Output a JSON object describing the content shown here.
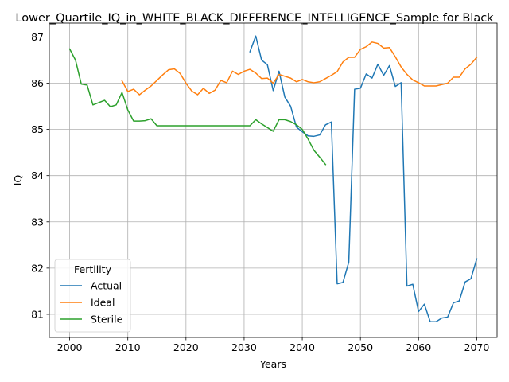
{
  "chart_data": {
    "type": "line",
    "title": "Lower_Quartile_IQ_in_WHITE_BLACK_DIFFERENCE_INTELLIGENCE_Sample for Black",
    "xlabel": "Years",
    "ylabel": "IQ",
    "xlim": [
      1996.5,
      2073.5
    ],
    "ylim": [
      80.5,
      87.3
    ],
    "xticks": [
      2000,
      2010,
      2020,
      2030,
      2040,
      2050,
      2060,
      2070
    ],
    "yticks": [
      81,
      82,
      83,
      84,
      85,
      86,
      87
    ],
    "grid": true,
    "legend": {
      "title": "Fertility",
      "placement": "lower-left"
    },
    "series": [
      {
        "name": "Actual",
        "color": "#1f77b4",
        "x": [
          2031,
          2032,
          2033,
          2034,
          2035,
          2036,
          2037,
          2038,
          2039,
          2040,
          2041,
          2042,
          2043,
          2044,
          2045,
          2046,
          2047,
          2048,
          2049,
          2050,
          2051,
          2052,
          2053,
          2054,
          2055,
          2056,
          2057,
          2058,
          2059,
          2060,
          2061,
          2062,
          2063,
          2064,
          2065,
          2066,
          2067,
          2068,
          2069,
          2070
        ],
        "y": [
          86.68,
          87.02,
          86.5,
          86.4,
          85.84,
          86.26,
          85.7,
          85.5,
          85.05,
          84.95,
          84.86,
          84.85,
          84.88,
          85.1,
          85.16,
          81.66,
          81.69,
          82.13,
          85.87,
          85.89,
          86.2,
          86.11,
          86.41,
          86.17,
          86.38,
          85.93,
          86.01,
          81.61,
          81.65,
          81.06,
          81.22,
          80.84,
          80.84,
          80.92,
          80.94,
          81.25,
          81.29,
          81.7,
          81.77,
          82.2
        ]
      },
      {
        "name": "Ideal",
        "color": "#ff7f0e",
        "x": [
          2009,
          2010,
          2011,
          2012,
          2013,
          2014,
          2015,
          2016,
          2017,
          2018,
          2019,
          2020,
          2021,
          2022,
          2023,
          2024,
          2025,
          2026,
          2027,
          2028,
          2029,
          2030,
          2031,
          2032,
          2033,
          2034,
          2035,
          2036,
          2037,
          2038,
          2039,
          2040,
          2041,
          2042,
          2043,
          2044,
          2045,
          2046,
          2047,
          2048,
          2049,
          2050,
          2051,
          2052,
          2053,
          2054,
          2055,
          2056,
          2057,
          2058,
          2059,
          2060,
          2061,
          2062,
          2063,
          2064,
          2065,
          2066,
          2067,
          2068,
          2069,
          2070
        ],
        "y": [
          86.05,
          85.82,
          85.87,
          85.75,
          85.85,
          85.94,
          86.06,
          86.18,
          86.29,
          86.31,
          86.21,
          86.0,
          85.83,
          85.75,
          85.89,
          85.78,
          85.85,
          86.06,
          86.01,
          86.26,
          86.19,
          86.26,
          86.3,
          86.22,
          86.1,
          86.11,
          86.0,
          86.19,
          86.15,
          86.11,
          86.03,
          86.08,
          86.03,
          86.01,
          86.03,
          86.1,
          86.17,
          86.25,
          86.46,
          86.56,
          86.56,
          86.73,
          86.79,
          86.89,
          86.86,
          86.76,
          86.77,
          86.57,
          86.35,
          86.19,
          86.07,
          86.01,
          85.94,
          85.94,
          85.94,
          85.97,
          86.0,
          86.13,
          86.13,
          86.31,
          86.41,
          86.56
        ]
      },
      {
        "name": "Sterile",
        "color": "#2ca02c",
        "x": [
          2000,
          2001,
          2002,
          2003,
          2004,
          2005,
          2006,
          2007,
          2008,
          2009,
          2010,
          2011,
          2012,
          2013,
          2014,
          2015,
          2016,
          2017,
          2018,
          2019,
          2020,
          2021,
          2022,
          2023,
          2024,
          2025,
          2026,
          2027,
          2028,
          2029,
          2030,
          2031,
          2032,
          2033,
          2034,
          2035,
          2036,
          2037,
          2038,
          2039,
          2040,
          2041,
          2042,
          2043,
          2044
        ],
        "y": [
          86.74,
          86.5,
          85.98,
          85.96,
          85.53,
          85.58,
          85.63,
          85.49,
          85.53,
          85.8,
          85.42,
          85.18,
          85.18,
          85.19,
          85.23,
          85.08,
          85.08,
          85.08,
          85.08,
          85.08,
          85.08,
          85.08,
          85.08,
          85.08,
          85.08,
          85.08,
          85.08,
          85.08,
          85.08,
          85.08,
          85.08,
          85.08,
          85.21,
          85.12,
          85.04,
          84.96,
          85.21,
          85.21,
          85.17,
          85.1,
          85.0,
          84.79,
          84.55,
          84.4,
          84.24
        ]
      }
    ]
  }
}
